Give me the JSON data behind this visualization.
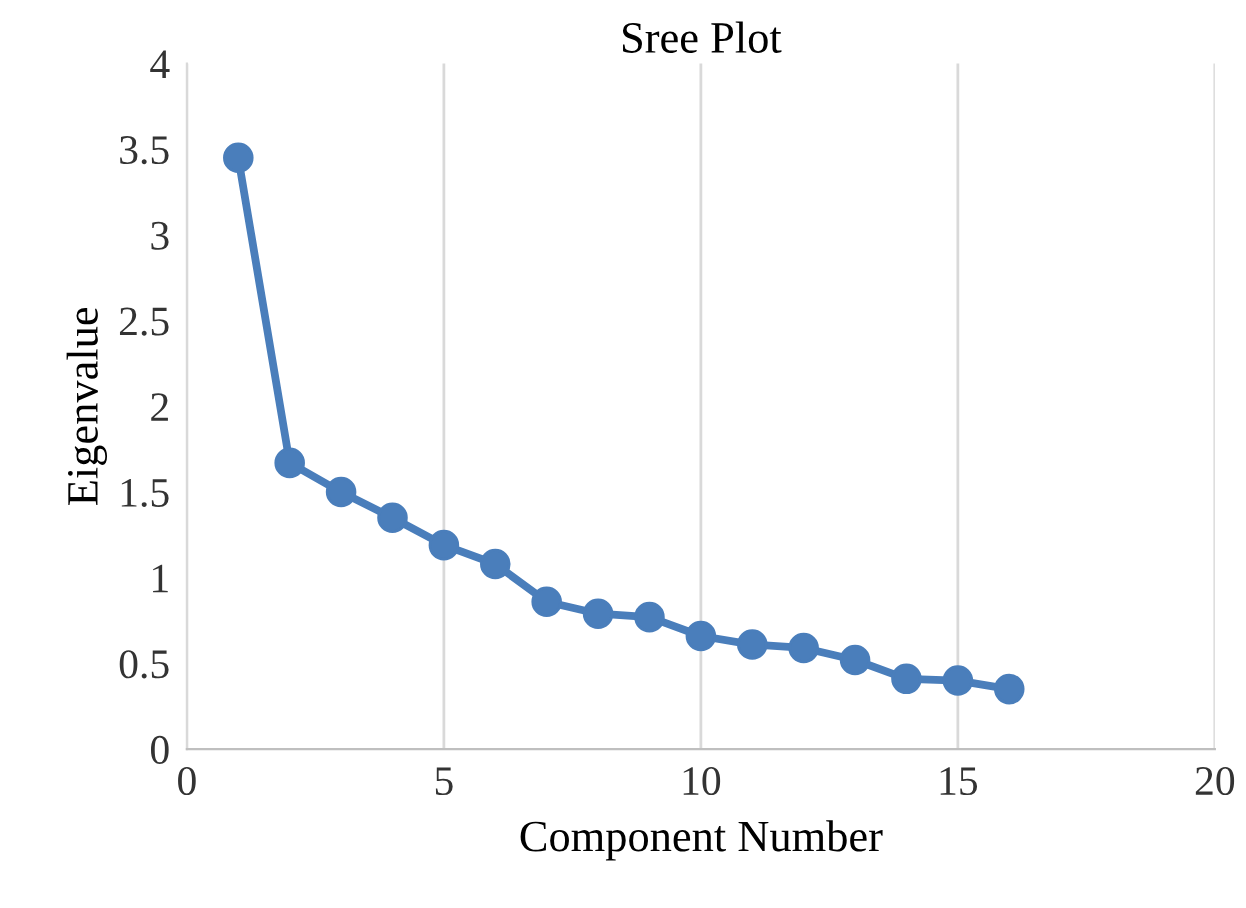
{
  "chart_data": {
    "type": "line",
    "title": "Sree Plot",
    "xlabel": "Component Number",
    "ylabel": "Eigenvalue",
    "series": [
      {
        "color": "#4a7ebb",
        "x": [
          1,
          2,
          3,
          4,
          5,
          6,
          7,
          8,
          9,
          10,
          11,
          12,
          13,
          14,
          15,
          16
        ],
        "values": [
          3.45,
          1.67,
          1.5,
          1.35,
          1.19,
          1.08,
          0.86,
          0.79,
          0.77,
          0.66,
          0.61,
          0.59,
          0.52,
          0.41,
          0.4,
          0.35
        ]
      }
    ],
    "xlim": [
      0,
      20
    ],
    "xticks": [
      0,
      5,
      10,
      15,
      20
    ],
    "ylim": [
      0,
      4
    ],
    "yticks": [
      0,
      0.5,
      1,
      1.5,
      2,
      2.5,
      3,
      3.5,
      4
    ],
    "grid": "x",
    "marker": "circle",
    "line_style": "solid"
  }
}
